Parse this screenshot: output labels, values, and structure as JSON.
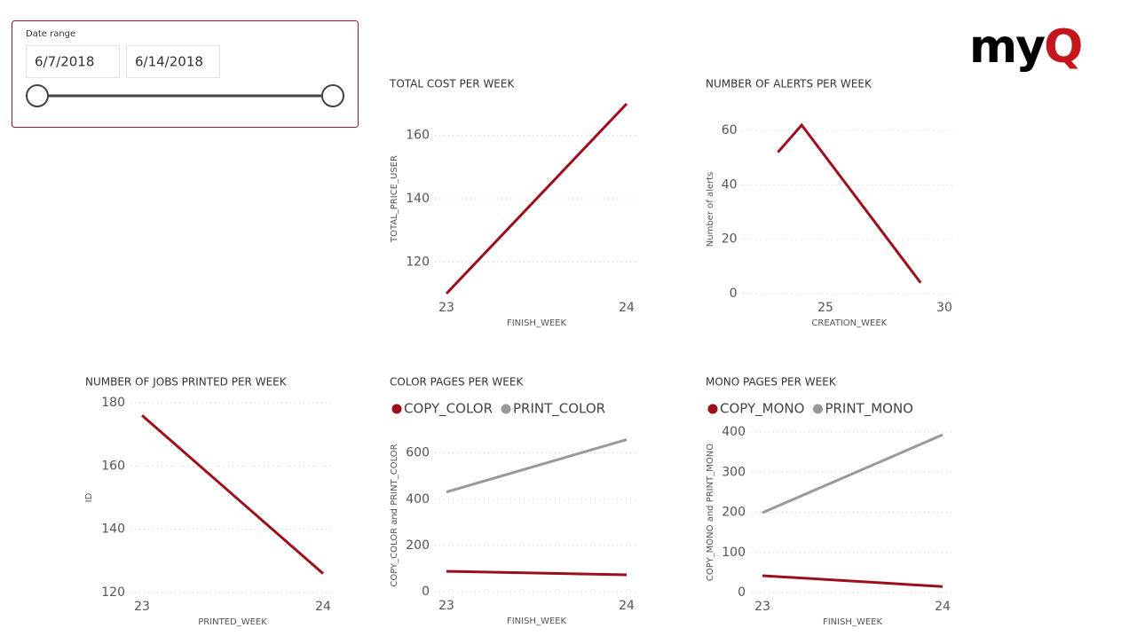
{
  "slicer": {
    "title": "Date range",
    "start": "6/7/2018",
    "end": "6/14/2018"
  },
  "logo": {
    "parts": [
      "my",
      "Q"
    ]
  },
  "chart_data": [
    {
      "type": "line",
      "title": "TOTAL COST PER WEEK",
      "x_label": "FINISH_WEEK",
      "y_label": "TOTAL_PRICE_USER",
      "x": [
        23,
        24
      ],
      "values": [
        110,
        170
      ],
      "color": "#9b0e1a",
      "xlim": [
        23,
        24
      ],
      "xticks": [
        23,
        24
      ],
      "ylim": [
        110,
        170
      ],
      "yticks": [
        120,
        140,
        160
      ],
      "grid": true
    },
    {
      "type": "line",
      "title": "NUMBER OF ALERTS PER WEEK",
      "x_label": "CREATION_WEEK",
      "y_label": "Number of alerts",
      "x": [
        23,
        24,
        29
      ],
      "values": [
        52,
        62,
        4
      ],
      "color": "#9b0e1a",
      "xlim": [
        22,
        30
      ],
      "xticks": [
        25,
        30
      ],
      "ylim": [
        0,
        62
      ],
      "yticks": [
        0,
        20,
        40,
        60
      ],
      "grid": true
    },
    {
      "type": "line",
      "title": "NUMBER OF JOBS PRINTED PER WEEK",
      "x_label": "PRINTED_WEEK",
      "y_label": "ID",
      "x": [
        23,
        24
      ],
      "values": [
        176,
        126
      ],
      "color": "#9b0e1a",
      "xlim": [
        23,
        24
      ],
      "xticks": [
        23,
        24
      ],
      "ylim": [
        120,
        180
      ],
      "yticks": [
        120,
        140,
        160,
        180
      ],
      "grid": true
    },
    {
      "type": "line",
      "title": "COLOR PAGES PER WEEK",
      "x_label": "FINISH_WEEK",
      "y_label": "COPY_COLOR and PRINT_COLOR",
      "x": [
        23,
        24
      ],
      "series": [
        {
          "name": "COPY_COLOR",
          "color": "#9b0e1a",
          "values": [
            88,
            73
          ]
        },
        {
          "name": "PRINT_COLOR",
          "color": "#999999",
          "values": [
            431,
            658
          ]
        }
      ],
      "xlim": [
        23,
        24
      ],
      "xticks": [
        23,
        24
      ],
      "ylim": [
        0,
        660
      ],
      "yticks": [
        0,
        200,
        400,
        600
      ],
      "grid": true
    },
    {
      "type": "line",
      "title": "MONO PAGES PER WEEK",
      "x_label": "FINISH_WEEK",
      "y_label": "COPY_MONO and PRINT_MONO",
      "x": [
        23,
        24
      ],
      "series": [
        {
          "name": "COPY_MONO",
          "color": "#9b0e1a",
          "values": [
            42,
            15
          ]
        },
        {
          "name": "PRINT_MONO",
          "color": "#999999",
          "values": [
            199,
            393
          ]
        }
      ],
      "xlim": [
        23,
        24
      ],
      "xticks": [
        23,
        24
      ],
      "ylim": [
        0,
        400
      ],
      "yticks": [
        0,
        100,
        200,
        300,
        400
      ],
      "grid": true
    }
  ]
}
